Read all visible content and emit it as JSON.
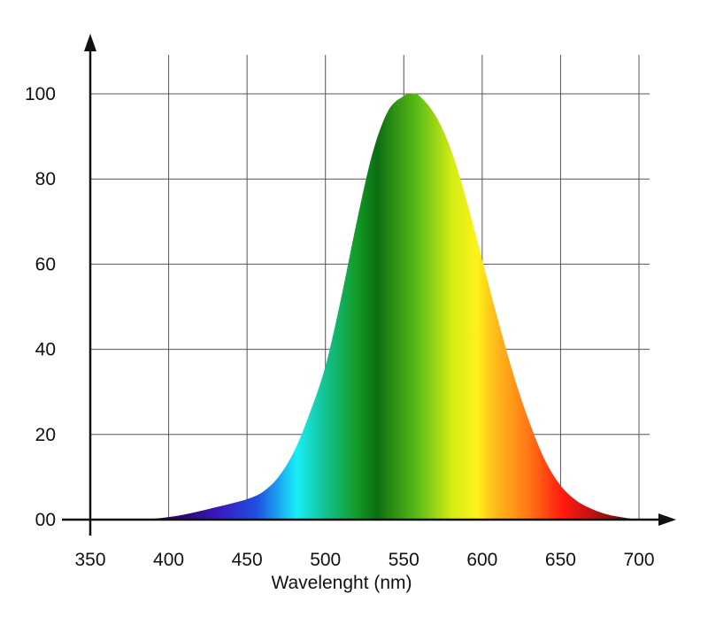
{
  "chart_data": {
    "type": "area",
    "title": "",
    "xlabel": "Wavelenght (nm)",
    "ylabel": "",
    "xlim": [
      350,
      700
    ],
    "ylim": [
      0,
      100
    ],
    "x_ticks": [
      350,
      400,
      450,
      500,
      550,
      600,
      650,
      700
    ],
    "x_tick_labels": [
      "350",
      "400",
      "450",
      "500",
      "550",
      "600",
      "650",
      "700"
    ],
    "y_ticks": [
      0,
      20,
      40,
      60,
      80,
      100
    ],
    "y_tick_labels": [
      "00",
      "20",
      "40",
      "60",
      "80",
      "100"
    ],
    "grid": true,
    "legend": "none",
    "x": [
      380,
      390,
      400,
      410,
      420,
      430,
      440,
      450,
      460,
      470,
      480,
      490,
      500,
      510,
      520,
      530,
      540,
      550,
      555,
      560,
      570,
      580,
      590,
      600,
      610,
      620,
      630,
      640,
      650,
      660,
      670,
      680,
      690,
      700
    ],
    "values": [
      0,
      0.2,
      0.6,
      1.2,
      2.0,
      2.9,
      3.8,
      4.8,
      6.5,
      10,
      16,
      25,
      36,
      52,
      70,
      86,
      96,
      99.5,
      100,
      99.5,
      95,
      87,
      75,
      61,
      47,
      34,
      23,
      14,
      8,
      4.5,
      2.5,
      1.2,
      0.5,
      0
    ]
  },
  "colors": {
    "axis": "#111111",
    "grid": "#555555",
    "spectrum": [
      {
        "stop": 0.0,
        "color": "#1e0833"
      },
      {
        "stop": 0.09,
        "color": "#2a0a7a"
      },
      {
        "stop": 0.15,
        "color": "#3a18c0"
      },
      {
        "stop": 0.23,
        "color": "#1f4fe0"
      },
      {
        "stop": 0.27,
        "color": "#1a9ef0"
      },
      {
        "stop": 0.31,
        "color": "#18eef5"
      },
      {
        "stop": 0.37,
        "color": "#12c08a"
      },
      {
        "stop": 0.43,
        "color": "#139a24"
      },
      {
        "stop": 0.47,
        "color": "#0b6e12"
      },
      {
        "stop": 0.55,
        "color": "#5abc16"
      },
      {
        "stop": 0.62,
        "color": "#d4ec14"
      },
      {
        "stop": 0.67,
        "color": "#fff21a"
      },
      {
        "stop": 0.7,
        "color": "#ffc21a"
      },
      {
        "stop": 0.77,
        "color": "#ff7a16"
      },
      {
        "stop": 0.84,
        "color": "#ff1a0e"
      },
      {
        "stop": 0.9,
        "color": "#c21212"
      },
      {
        "stop": 1.0,
        "color": "#3a0606"
      }
    ]
  }
}
